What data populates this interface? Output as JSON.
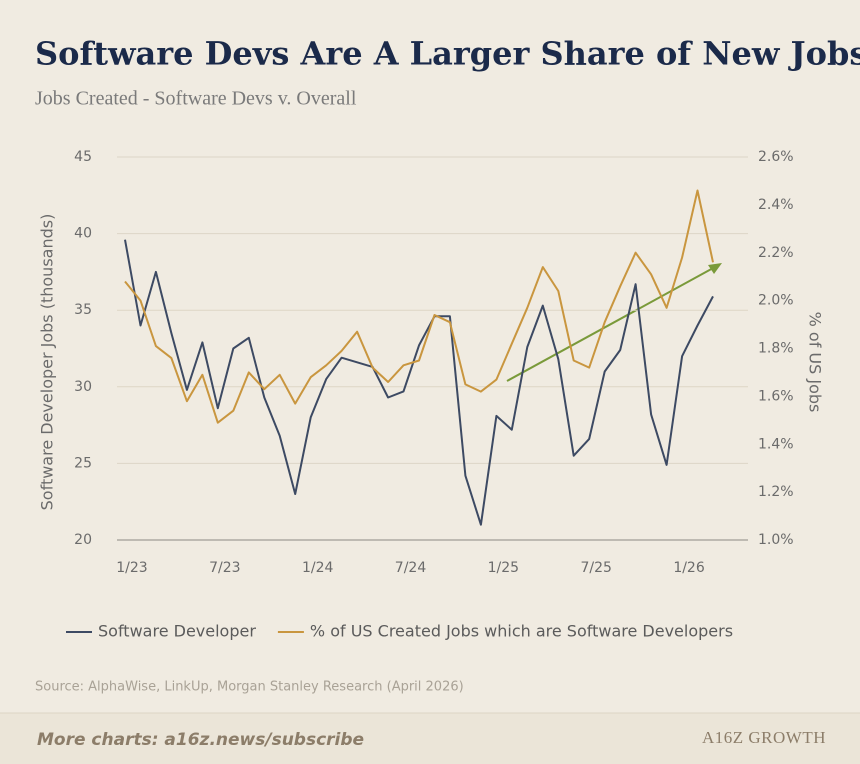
{
  "chart_data": {
    "type": "line",
    "title": "Software Devs Are A Larger Share of New Jobs",
    "subtitle": "Jobs Created - Software Devs v. Overall",
    "y_label": "Software Developer Jobs (thousands)",
    "y2_label": "% of US Jobs",
    "categories": [
      "1/23",
      null,
      null,
      null,
      null,
      null,
      "7/23",
      null,
      null,
      null,
      null,
      null,
      "1/24",
      null,
      null,
      null,
      null,
      null,
      "7/24",
      null,
      null,
      null,
      null,
      null,
      "1/25",
      null,
      null,
      null,
      null,
      null,
      "7/25",
      null,
      null,
      null,
      null,
      null,
      "1/26",
      null,
      null
    ],
    "series": [
      {
        "name": "Software Developer",
        "color": "#3d4a63",
        "values": [
          39.6,
          34.0,
          37.5,
          33.5,
          29.8,
          32.9,
          28.6,
          32.5,
          33.2,
          29.3,
          26.8,
          23.0,
          28.0,
          30.5,
          31.9,
          31.6,
          31.3,
          29.3,
          29.7,
          32.7,
          34.6,
          34.6,
          24.2,
          21.0,
          28.1,
          27.2,
          32.6,
          35.3,
          31.8,
          25.5,
          26.6,
          31.0,
          32.4,
          36.7,
          28.2,
          24.9,
          32.0,
          34.0,
          35.9
        ]
      },
      {
        "name": "% of US Created Jobs which are Software Developers",
        "color": "#c9963f",
        "axis": "y2",
        "values": [
          2.08,
          2.0,
          1.81,
          1.76,
          1.58,
          1.69,
          1.49,
          1.54,
          1.7,
          1.63,
          1.69,
          1.57,
          1.68,
          1.73,
          1.79,
          1.87,
          1.72,
          1.66,
          1.73,
          1.75,
          1.94,
          1.91,
          1.65,
          1.62,
          1.67,
          1.82,
          1.97,
          2.14,
          2.04,
          1.75,
          1.72,
          1.91,
          2.06,
          2.2,
          2.11,
          1.97,
          2.18,
          2.46,
          2.16
        ]
      }
    ],
    "ylim": [
      20,
      45
    ],
    "yticks": [
      20,
      25,
      30,
      35,
      40,
      45
    ],
    "y2lim": [
      1.0,
      2.6
    ],
    "y2ticks": [
      {
        "value": 1.0,
        "label": "1.0%"
      },
      {
        "value": 1.2,
        "label": "1.2%"
      },
      {
        "value": 1.4,
        "label": "1.4%"
      },
      {
        "value": 1.6,
        "label": "1.6%"
      },
      {
        "value": 1.8,
        "label": "1.8%"
      },
      {
        "value": 2.0,
        "label": "2.0%"
      },
      {
        "value": 2.2,
        "label": "2.2%"
      },
      {
        "value": 2.4,
        "label": "2.4%"
      },
      {
        "value": 2.6,
        "label": "2.6%"
      }
    ],
    "grid": true,
    "legend": "bottom",
    "source": "Source: AlphaWise, LinkUp, Morgan Stanley Research (April 2026)",
    "footer_link": "More charts: a16z.news/subscribe",
    "logo": "A16Z GROWTH"
  }
}
